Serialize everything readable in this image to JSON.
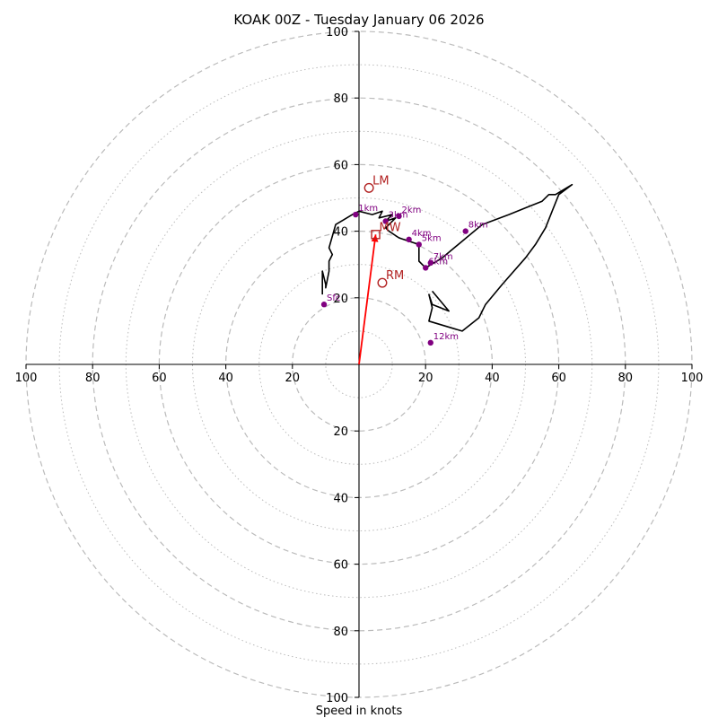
{
  "chart_data": {
    "type": "hodograph",
    "title": "KOAK 00Z - Tuesday January 06 2026",
    "xlabel": "Speed in knots",
    "range": 100,
    "ring_major": [
      20,
      40,
      60,
      80,
      100
    ],
    "ring_minor": [
      10,
      30,
      50,
      70,
      90
    ],
    "tick_labels": {
      "left": [
        "100",
        "80",
        "60",
        "40",
        "20"
      ],
      "right": [
        "20",
        "40",
        "60",
        "80",
        "100"
      ],
      "top": [
        "100",
        "80",
        "60",
        "40",
        "20"
      ],
      "bottom": [
        "20",
        "40",
        "60",
        "80",
        "100"
      ]
    },
    "tick_values": [
      100,
      80,
      60,
      40,
      20
    ],
    "colors": {
      "trace": "#000000",
      "height_points": "#800080",
      "storm_motion": "#b22222",
      "mean_wind_vector": "#ff0000",
      "rings": "#bbbbbb"
    },
    "trace": [
      [
        -11,
        21
      ],
      [
        -11,
        28
      ],
      [
        -10,
        24
      ],
      [
        -10,
        23
      ],
      [
        -9,
        28
      ],
      [
        -9,
        31
      ],
      [
        -8,
        33
      ],
      [
        -9,
        35
      ],
      [
        -7,
        42
      ],
      [
        -2,
        45
      ],
      [
        0,
        46
      ],
      [
        4,
        45
      ],
      [
        7,
        46
      ],
      [
        6,
        44
      ],
      [
        10,
        45
      ],
      [
        8,
        43
      ],
      [
        11,
        44
      ],
      [
        8,
        41
      ],
      [
        9,
        40
      ],
      [
        12,
        38
      ],
      [
        15,
        37
      ],
      [
        18,
        36
      ],
      [
        18,
        31
      ],
      [
        20,
        29
      ],
      [
        25,
        32
      ],
      [
        31,
        37
      ],
      [
        37,
        42
      ],
      [
        45,
        45
      ],
      [
        50,
        47
      ],
      [
        55,
        49
      ],
      [
        57,
        51
      ],
      [
        59,
        51
      ],
      [
        64,
        54
      ],
      [
        60,
        51
      ],
      [
        58,
        46
      ],
      [
        56,
        41
      ],
      [
        53,
        36
      ],
      [
        50,
        32
      ],
      [
        43,
        24
      ],
      [
        38,
        18
      ],
      [
        36,
        14
      ],
      [
        31,
        10
      ],
      [
        21,
        13
      ],
      [
        22,
        17
      ],
      [
        21,
        21
      ],
      [
        22,
        18
      ],
      [
        27,
        16
      ],
      [
        22,
        22
      ]
    ],
    "height_points": [
      {
        "label": "Sfc",
        "u": -10.5,
        "v": 18
      },
      {
        "label": "1km",
        "u": -1,
        "v": 45
      },
      {
        "label": "2km",
        "u": 12,
        "v": 44.5
      },
      {
        "label": "3km",
        "u": 8,
        "v": 43
      },
      {
        "label": "4km",
        "u": 15,
        "v": 37.5
      },
      {
        "label": "5km",
        "u": 18,
        "v": 36
      },
      {
        "label": "6km",
        "u": 20,
        "v": 29
      },
      {
        "label": "7km",
        "u": 21.5,
        "v": 30.5
      },
      {
        "label": "8km",
        "u": 32,
        "v": 40
      },
      {
        "label": "12km",
        "u": 21.5,
        "v": 6.5
      }
    ],
    "storm_motion": [
      {
        "label": "LM",
        "u": 3,
        "v": 53,
        "marker": "circle"
      },
      {
        "label": "RM",
        "u": 7,
        "v": 24.5,
        "marker": "circle"
      },
      {
        "label": "MW",
        "u": 5,
        "v": 39,
        "marker": "square"
      }
    ],
    "mean_wind_vector": {
      "u": 5,
      "v": 39
    }
  }
}
